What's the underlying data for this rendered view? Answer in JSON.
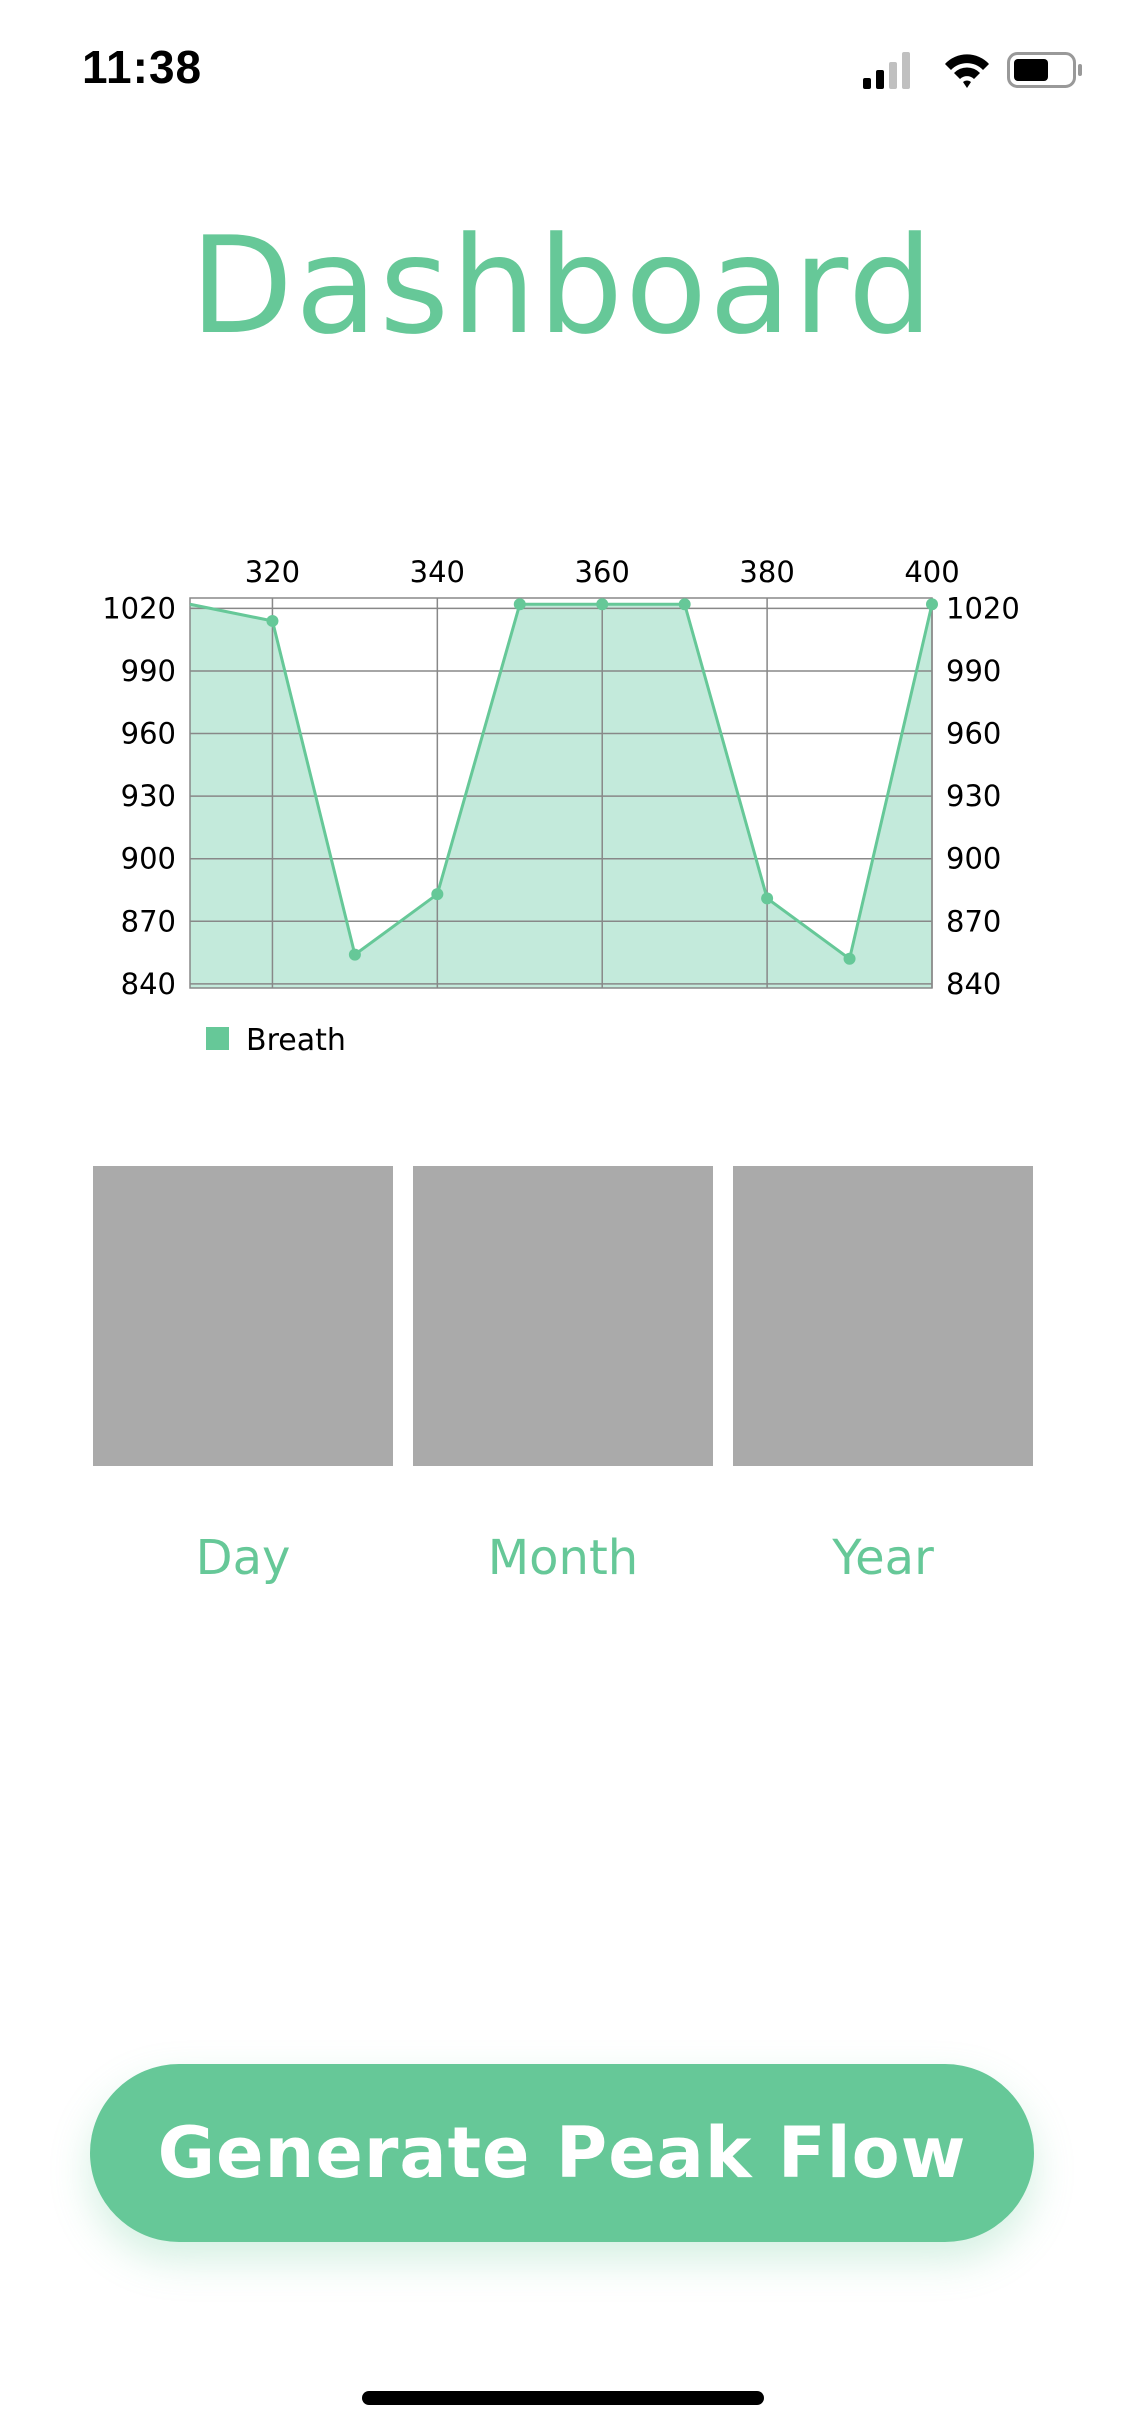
{
  "status_bar": {
    "time": "11:38",
    "icons": [
      "cellular-signal-icon",
      "wifi-icon",
      "battery-icon"
    ]
  },
  "header": {
    "title": "Dashboard"
  },
  "colors": {
    "accent": "#66c898",
    "area_fill": "#c3eadb",
    "tile": "#aaaaaa",
    "grid": "#888888"
  },
  "chart_data": {
    "type": "area",
    "x": [
      310,
      320,
      330,
      340,
      350,
      360,
      370,
      380,
      390,
      400
    ],
    "series": [
      {
        "name": "Breath",
        "values": [
          1022,
          1014,
          854,
          883,
          1022,
          1022,
          1022,
          881,
          852,
          1022
        ]
      }
    ],
    "x_ticks": [
      320,
      340,
      360,
      380,
      400
    ],
    "y_ticks": [
      840,
      870,
      900,
      930,
      960,
      990,
      1020
    ],
    "xlim": [
      310,
      400
    ],
    "ylim": [
      838,
      1025
    ],
    "x_axis_position": "top",
    "y_axes": "left-and-right",
    "grid": true,
    "legend": "bottom-left",
    "show_markers": true
  },
  "tiles": [
    {
      "label": "Day"
    },
    {
      "label": "Month"
    },
    {
      "label": "Year"
    }
  ],
  "cta": {
    "label": "Generate Peak Flow"
  }
}
